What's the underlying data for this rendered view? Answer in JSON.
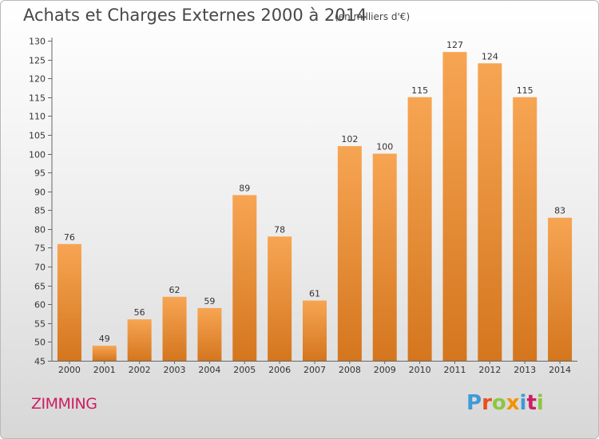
{
  "header": {
    "title": "Achats et Charges Externes 2000 à 2014",
    "subtitle": "(en milliers d'€)"
  },
  "footer": {
    "commune": "ZIMMING",
    "logo_text": "Proxiti"
  },
  "colors": {
    "bar_light": "#f7a553",
    "bar_dark": "#d4761e",
    "commune_text": "#cc1e63",
    "logo_letters": [
      "#3e9bd6",
      "#e8501c",
      "#8dc63f",
      "#f39200",
      "#3e9bd6",
      "#cc1e63",
      "#8dc63f"
    ]
  },
  "chart_data": {
    "type": "bar",
    "categories": [
      "2000",
      "2001",
      "2002",
      "2003",
      "2004",
      "2005",
      "2006",
      "2007",
      "2008",
      "2009",
      "2010",
      "2011",
      "2012",
      "2013",
      "2014"
    ],
    "values": [
      76,
      49,
      56,
      62,
      59,
      89,
      78,
      61,
      102,
      100,
      115,
      127,
      124,
      115,
      83
    ],
    "title": "Achats et Charges Externes 2000 à 2014",
    "ylim": [
      45,
      130
    ],
    "ytick_step": 5,
    "grid": false
  }
}
